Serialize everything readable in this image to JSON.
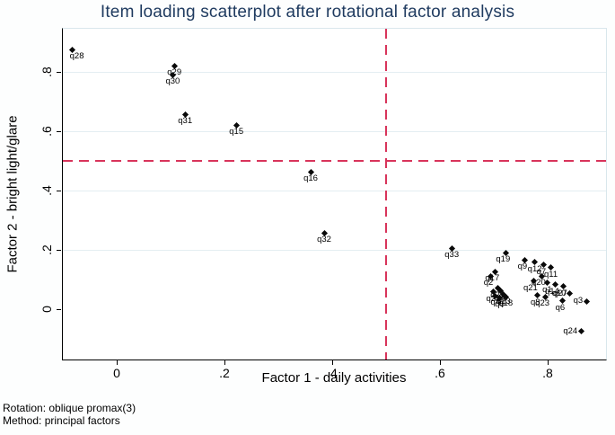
{
  "title": "Item loading scatterplot after rotational factor analysis",
  "notes": [
    "Rotation: oblique promax(3)",
    "Method: principal factors"
  ],
  "colors": {
    "title": "#1e3a5f",
    "ref_line": "#d8345b",
    "gridline": "#e4eef2",
    "marker": "#0a0a0a",
    "plot_border": "#d9e7ec",
    "axis": "#000000"
  },
  "chart_data": {
    "type": "scatter",
    "title": "Item loading scatterplot after rotational factor analysis",
    "xlabel": "Factor 1 - daily activities",
    "ylabel": "Factor 2 - bright light/glare",
    "xlim": [
      -0.102,
      0.908
    ],
    "ylim": [
      -0.17,
      0.945
    ],
    "xticks": [
      {
        "v": 0,
        "t": "0"
      },
      {
        "v": 0.2,
        "t": ".2"
      },
      {
        "v": 0.4,
        "t": ".4"
      },
      {
        "v": 0.6,
        "t": ".6"
      },
      {
        "v": 0.8,
        "t": ".8"
      }
    ],
    "yticks": [
      {
        "v": 0,
        "t": "0"
      },
      {
        "v": 0.2,
        "t": ".2"
      },
      {
        "v": 0.4,
        "t": ".4"
      },
      {
        "v": 0.6,
        "t": ".6"
      },
      {
        "v": 0.8,
        "t": ".8"
      }
    ],
    "grid": "horizontal-only",
    "legend": "none",
    "ref_lines": {
      "x": 0.5,
      "y": 0.5,
      "style": "dashed"
    },
    "points": [
      {
        "label": "q28",
        "x": -0.082,
        "y": 0.875,
        "pos": "br"
      },
      {
        "label": "q29",
        "x": 0.107,
        "y": 0.82,
        "pos": "b"
      },
      {
        "label": "q30",
        "x": 0.104,
        "y": 0.79,
        "pos": "b"
      },
      {
        "label": "q31",
        "x": 0.127,
        "y": 0.657,
        "pos": "b"
      },
      {
        "label": "q15",
        "x": 0.222,
        "y": 0.62,
        "pos": "b"
      },
      {
        "label": "q16",
        "x": 0.36,
        "y": 0.463,
        "pos": "b"
      },
      {
        "label": "q32",
        "x": 0.385,
        "y": 0.257,
        "pos": "b"
      },
      {
        "label": "q33",
        "x": 0.622,
        "y": 0.205,
        "pos": "b"
      },
      {
        "label": "q19",
        "x": 0.723,
        "y": 0.19,
        "pos": "bl"
      },
      {
        "label": "q9",
        "x": 0.757,
        "y": 0.166,
        "pos": "bl"
      },
      {
        "label": "q12",
        "x": 0.776,
        "y": 0.158,
        "pos": "b"
      },
      {
        "label": "q7",
        "x": 0.792,
        "y": 0.15,
        "pos": "bl"
      },
      {
        "label": "q11",
        "x": 0.806,
        "y": 0.14,
        "pos": "b"
      },
      {
        "label": "q17",
        "x": 0.703,
        "y": 0.126,
        "pos": "bl"
      },
      {
        "label": "q2",
        "x": 0.694,
        "y": 0.112,
        "pos": "bl"
      },
      {
        "label": "q20",
        "x": 0.789,
        "y": 0.112,
        "pos": "bl"
      },
      {
        "label": "q21",
        "x": 0.774,
        "y": 0.094,
        "pos": "bl"
      },
      {
        "label": "q1",
        "x": 0.799,
        "y": 0.088,
        "pos": "b"
      },
      {
        "label": "q14",
        "x": 0.814,
        "y": 0.082,
        "pos": "bl"
      },
      {
        "label": "q27",
        "x": 0.829,
        "y": 0.076,
        "pos": "bl"
      },
      {
        "label": "q25",
        "x": 0.707,
        "y": 0.07,
        "pos": "b"
      },
      {
        "label": "q22",
        "x": 0.699,
        "y": 0.058,
        "pos": "b"
      },
      {
        "label": "q26",
        "x": 0.713,
        "y": 0.061,
        "pos": "b"
      },
      {
        "label": "q13",
        "x": 0.718,
        "y": 0.05,
        "pos": "b"
      },
      {
        "label": "q4",
        "x": 0.703,
        "y": 0.044,
        "pos": "b"
      },
      {
        "label": "q5",
        "x": 0.711,
        "y": 0.038,
        "pos": "b"
      },
      {
        "label": "q18",
        "x": 0.722,
        "y": 0.042,
        "pos": "b"
      },
      {
        "label": "q10",
        "x": 0.841,
        "y": 0.052,
        "pos": "l"
      },
      {
        "label": "q8",
        "x": 0.781,
        "y": 0.046,
        "pos": "bl"
      },
      {
        "label": "q23",
        "x": 0.796,
        "y": 0.042,
        "pos": "bl"
      },
      {
        "label": "q6",
        "x": 0.827,
        "y": 0.028,
        "pos": "bl"
      },
      {
        "label": "q3",
        "x": 0.872,
        "y": 0.026,
        "pos": "l"
      },
      {
        "label": "q24",
        "x": 0.862,
        "y": -0.075,
        "pos": "l"
      }
    ]
  }
}
